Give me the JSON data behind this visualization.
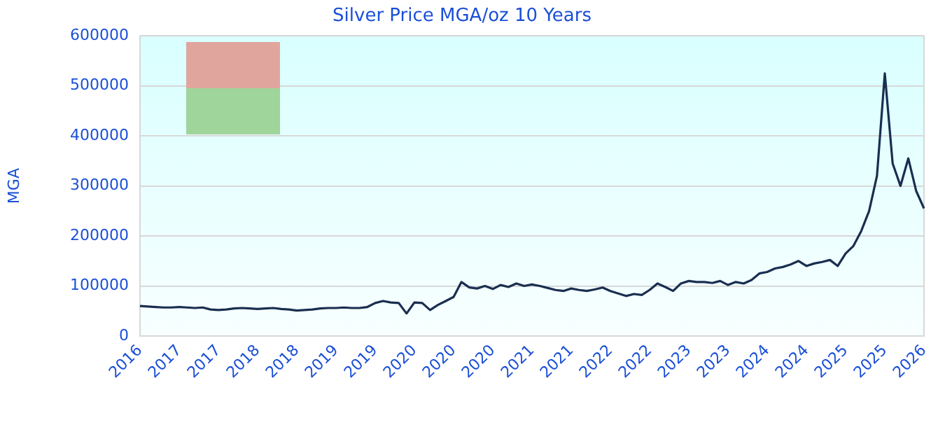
{
  "chart_data": {
    "type": "line",
    "title": "Silver Price MGA/oz 10 Years",
    "ylabel": "MGA",
    "categories": [
      "2016",
      null,
      null,
      null,
      null,
      "2017",
      null,
      null,
      null,
      null,
      "2017",
      null,
      null,
      null,
      null,
      "2018",
      null,
      null,
      null,
      null,
      "2018",
      null,
      null,
      null,
      null,
      "2019",
      null,
      null,
      null,
      null,
      "2019",
      null,
      null,
      null,
      null,
      "2020",
      null,
      null,
      null,
      null,
      "2020",
      null,
      null,
      null,
      null,
      "2020",
      null,
      null,
      null,
      null,
      "2021",
      null,
      null,
      null,
      null,
      "2021",
      null,
      null,
      null,
      null,
      "2022",
      null,
      null,
      null,
      null,
      "2022",
      null,
      null,
      null,
      null,
      "2023",
      null,
      null,
      null,
      null,
      "2023",
      null,
      null,
      null,
      null,
      "2024",
      null,
      null,
      null,
      null,
      "2024",
      null,
      null,
      null,
      null,
      "2025",
      null,
      null,
      null,
      null,
      "2025",
      null,
      null,
      null,
      null,
      "2026"
    ],
    "series": [
      {
        "color": "#1a2e50",
        "values": [
          60000,
          59000,
          58000,
          57000,
          57000,
          58000,
          57000,
          56000,
          57000,
          53000,
          52000,
          53000,
          55000,
          56000,
          55000,
          54000,
          55000,
          56000,
          54000,
          53000,
          51000,
          52000,
          53000,
          55000,
          56000,
          56000,
          57000,
          56000,
          56000,
          58000,
          66000,
          70000,
          67000,
          66000,
          45000,
          67000,
          66000,
          52000,
          62000,
          70000,
          78000,
          108000,
          97000,
          95000,
          100000,
          94000,
          102000,
          98000,
          105000,
          100000,
          103000,
          100000,
          96000,
          92000,
          90000,
          95000,
          92000,
          90000,
          93000,
          97000,
          90000,
          85000,
          80000,
          84000,
          82000,
          92000,
          105000,
          98000,
          90000,
          105000,
          110000,
          108000,
          108000,
          106000,
          110000,
          102000,
          108000,
          105000,
          112000,
          125000,
          128000,
          135000,
          138000,
          143000,
          150000,
          140000,
          145000,
          148000,
          152000,
          140000,
          165000,
          180000,
          210000,
          250000,
          320000,
          525000,
          345000,
          300000,
          355000,
          290000,
          255000
        ]
      }
    ],
    "ylim": [
      0,
      600000
    ],
    "yticks": [
      0,
      100000,
      200000,
      300000,
      400000,
      500000,
      600000
    ],
    "grid": "y",
    "legend": false,
    "marker": "none",
    "line_style": "solid"
  }
}
